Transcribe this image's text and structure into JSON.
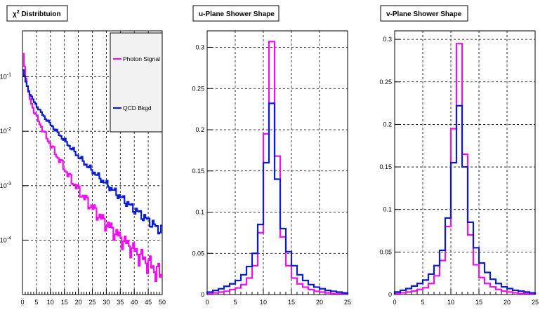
{
  "footer_text": "",
  "colors": {
    "signal": "#ee11ee",
    "background": "#0a1dcc"
  },
  "chart_data": [
    {
      "type": "line",
      "title": "χ² Distribtuion",
      "xlabel": "",
      "ylabel": "",
      "log_y": true,
      "xlim": [
        0,
        50
      ],
      "ylim": [
        1e-05,
        0.7
      ],
      "x_ticks": [
        0,
        5,
        10,
        15,
        20,
        25,
        30,
        35,
        40,
        45,
        50
      ],
      "y_ticks": [
        {
          "value": 0.1,
          "label": "10",
          "exp": "-1"
        },
        {
          "value": 0.01,
          "label": "10",
          "exp": "-2"
        },
        {
          "value": 0.001,
          "label": "10",
          "exp": "-3"
        },
        {
          "value": 0.0001,
          "label": "10",
          "exp": "-4"
        }
      ],
      "grid": true,
      "legend": "top-right",
      "bin_width": 0.5,
      "series": [
        {
          "name": "Photon Signal",
          "color": "#ee11ee",
          "points": [
            [
              0,
              0.34
            ],
            [
              1,
              0.12
            ],
            [
              2,
              0.055
            ],
            [
              3,
              0.035
            ],
            [
              4,
              0.025
            ],
            [
              5,
              0.019
            ],
            [
              6,
              0.0145
            ],
            [
              7,
              0.0115
            ],
            [
              8,
              0.009
            ],
            [
              9,
              0.0072
            ],
            [
              10,
              0.0058
            ],
            [
              11,
              0.0047
            ],
            [
              12,
              0.0038
            ],
            [
              13,
              0.0031
            ],
            [
              14,
              0.0026
            ],
            [
              15,
              0.0021
            ],
            [
              16,
              0.0017
            ],
            [
              17,
              0.0014
            ],
            [
              18,
              0.0012
            ],
            [
              19,
              0.001
            ],
            [
              20,
              0.00085
            ],
            [
              21,
              0.00072
            ],
            [
              22,
              0.00062
            ],
            [
              23,
              0.00053
            ],
            [
              24,
              0.00046
            ],
            [
              25,
              0.0004
            ],
            [
              26,
              0.00035
            ],
            [
              27,
              0.0003
            ],
            [
              28,
              0.00026
            ],
            [
              29,
              0.00023
            ],
            [
              30,
              0.0002
            ],
            [
              31,
              0.00018
            ],
            [
              32,
              0.00016
            ],
            [
              33,
              0.00014
            ],
            [
              34,
              0.000125
            ],
            [
              35,
              0.00011
            ],
            [
              36,
              0.0001
            ],
            [
              37,
              9e-05
            ],
            [
              38,
              8e-05
            ],
            [
              39,
              7.2e-05
            ],
            [
              40,
              6.5e-05
            ],
            [
              41,
              5.8e-05
            ],
            [
              42,
              5.2e-05
            ],
            [
              43,
              4.7e-05
            ],
            [
              44,
              4.2e-05
            ],
            [
              45,
              3.8e-05
            ],
            [
              46,
              3.4e-05
            ],
            [
              47,
              3e-05
            ],
            [
              48,
              2.7e-05
            ],
            [
              49,
              2.4e-05
            ],
            [
              50,
              2.2e-05
            ]
          ]
        },
        {
          "name": "QCD Bkgd",
          "color": "#0a1dcc",
          "points": [
            [
              0,
              0.15
            ],
            [
              1,
              0.09
            ],
            [
              2,
              0.06
            ],
            [
              3,
              0.045
            ],
            [
              4,
              0.036
            ],
            [
              5,
              0.03
            ],
            [
              6,
              0.025
            ],
            [
              7,
              0.021
            ],
            [
              8,
              0.018
            ],
            [
              9,
              0.0155
            ],
            [
              10,
              0.0135
            ],
            [
              11,
              0.0118
            ],
            [
              12,
              0.0103
            ],
            [
              13,
              0.009
            ],
            [
              14,
              0.0079
            ],
            [
              15,
              0.0069
            ],
            [
              16,
              0.006
            ],
            [
              17,
              0.0052
            ],
            [
              18,
              0.0046
            ],
            [
              19,
              0.004
            ],
            [
              20,
              0.0035
            ],
            [
              21,
              0.0031
            ],
            [
              22,
              0.0027
            ],
            [
              23,
              0.0024
            ],
            [
              24,
              0.0021
            ],
            [
              25,
              0.0019
            ],
            [
              26,
              0.0017
            ],
            [
              27,
              0.0015
            ],
            [
              28,
              0.00135
            ],
            [
              29,
              0.0012
            ],
            [
              30,
              0.00108
            ],
            [
              31,
              0.00097
            ],
            [
              32,
              0.00087
            ],
            [
              33,
              0.00078
            ],
            [
              34,
              0.0007
            ],
            [
              35,
              0.00063
            ],
            [
              36,
              0.00057
            ],
            [
              37,
              0.00051
            ],
            [
              38,
              0.00046
            ],
            [
              39,
              0.00041
            ],
            [
              40,
              0.00037
            ],
            [
              41,
              0.00034
            ],
            [
              42,
              0.00031
            ],
            [
              43,
              0.00028
            ],
            [
              44,
              0.00025
            ],
            [
              45,
              0.00023
            ],
            [
              46,
              0.00021
            ],
            [
              47,
              0.00019
            ],
            [
              48,
              0.00017
            ],
            [
              49,
              0.00016
            ],
            [
              50,
              0.00015
            ]
          ]
        }
      ]
    },
    {
      "type": "line",
      "title": "u-Plane Shower Shape",
      "xlabel": "",
      "ylabel": "",
      "xlim": [
        0,
        25
      ],
      "ylim": [
        0,
        0.32
      ],
      "x_ticks": [
        0,
        5,
        10,
        15,
        20,
        25
      ],
      "y_ticks": [
        {
          "value": 0,
          "label": "0"
        },
        {
          "value": 0.05,
          "label": "0.05"
        },
        {
          "value": 0.1,
          "label": "0.1"
        },
        {
          "value": 0.15,
          "label": "0.15"
        },
        {
          "value": 0.2,
          "label": "0.2"
        },
        {
          "value": 0.25,
          "label": "0.25"
        },
        {
          "value": 0.3,
          "label": "0.3"
        }
      ],
      "grid": true,
      "bin_edges": [
        0,
        1,
        2,
        3,
        4,
        5,
        6,
        7,
        8,
        9,
        10,
        11,
        12,
        13,
        14,
        15,
        16,
        17,
        18,
        19,
        20,
        21,
        22,
        23,
        24,
        25
      ],
      "series": [
        {
          "name": "",
          "color": "#ee11ee",
          "values": [
            0.001,
            0.002,
            0.003,
            0.004,
            0.006,
            0.008,
            0.012,
            0.02,
            0.035,
            0.075,
            0.195,
            0.307,
            0.168,
            0.07,
            0.035,
            0.02,
            0.013,
            0.009,
            0.006,
            0.004,
            0.003,
            0.002,
            0.001,
            0.001,
            0.001
          ]
        },
        {
          "name": "",
          "color": "#0a1dcc",
          "values": [
            0.003,
            0.005,
            0.007,
            0.01,
            0.013,
            0.017,
            0.024,
            0.034,
            0.05,
            0.085,
            0.16,
            0.232,
            0.14,
            0.08,
            0.052,
            0.035,
            0.024,
            0.017,
            0.012,
            0.009,
            0.007,
            0.005,
            0.004,
            0.003,
            0.002
          ]
        }
      ]
    },
    {
      "type": "line",
      "title": "v-Plane Shower Shape",
      "xlabel": "",
      "ylabel": "",
      "xlim": [
        0,
        25
      ],
      "ylim": [
        0,
        0.31
      ],
      "x_ticks": [
        0,
        5,
        10,
        15,
        20,
        25
      ],
      "y_ticks": [
        {
          "value": 0,
          "label": "0"
        },
        {
          "value": 0.05,
          "label": "0.05"
        },
        {
          "value": 0.1,
          "label": "0.1"
        },
        {
          "value": 0.15,
          "label": "0.15"
        },
        {
          "value": 0.2,
          "label": "0.2"
        },
        {
          "value": 0.25,
          "label": "0.25"
        },
        {
          "value": 0.3,
          "label": "0.3"
        }
      ],
      "grid": true,
      "bin_edges": [
        0,
        1,
        2,
        3,
        4,
        5,
        6,
        7,
        8,
        9,
        10,
        11,
        12,
        13,
        14,
        15,
        16,
        17,
        18,
        19,
        20,
        21,
        22,
        23,
        24,
        25
      ],
      "series": [
        {
          "name": "",
          "color": "#ee11ee",
          "values": [
            0.001,
            0.002,
            0.003,
            0.004,
            0.006,
            0.008,
            0.013,
            0.022,
            0.04,
            0.08,
            0.195,
            0.295,
            0.165,
            0.07,
            0.035,
            0.02,
            0.013,
            0.009,
            0.006,
            0.004,
            0.003,
            0.002,
            0.001,
            0.001,
            0.001
          ]
        },
        {
          "name": "",
          "color": "#0a1dcc",
          "values": [
            0.003,
            0.005,
            0.007,
            0.01,
            0.013,
            0.017,
            0.024,
            0.034,
            0.052,
            0.09,
            0.155,
            0.222,
            0.15,
            0.085,
            0.055,
            0.037,
            0.026,
            0.018,
            0.013,
            0.009,
            0.007,
            0.005,
            0.004,
            0.003,
            0.002
          ]
        }
      ]
    }
  ]
}
